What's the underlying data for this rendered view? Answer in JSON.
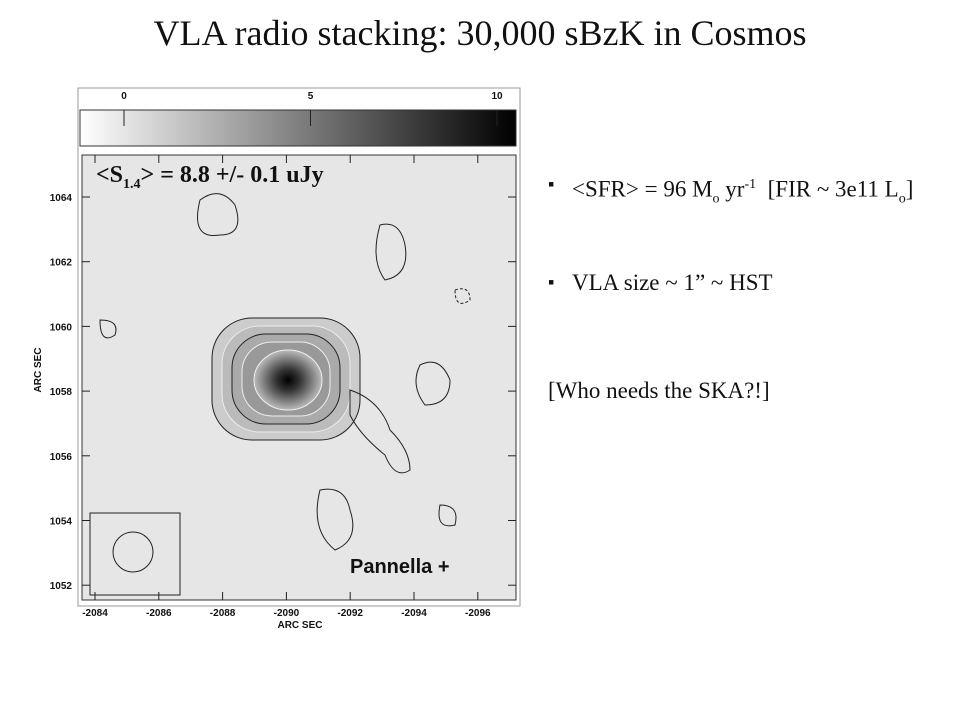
{
  "title": "VLA radio stacking: 30,000 sBzK in Cosmos",
  "figure": {
    "colorbar_ticks": [
      "0",
      "5",
      "10"
    ],
    "y_ticks": [
      "1064",
      "1062",
      "1060",
      "1058",
      "1056",
      "1054",
      "1052"
    ],
    "x_ticks": [
      "-2084",
      "-2086",
      "-2088",
      "-2090",
      "-2092",
      "-2094",
      "-2096"
    ],
    "x_label": "ARC SEC",
    "y_label": "ARC SEC",
    "overlay": [
      "<S",
      "1.4",
      "> = 8.8 +/- 0.1 uJy"
    ],
    "credit": "Pannella +"
  },
  "bullets": [
    [
      "<SFR> = 96 M",
      "o",
      " yr",
      "-1",
      "  [FIR ~ 3e11 L",
      "o",
      "]"
    ],
    [
      "VLA size ~ 1” ~ HST"
    ]
  ],
  "note": "[Who needs the SKA?!]"
}
